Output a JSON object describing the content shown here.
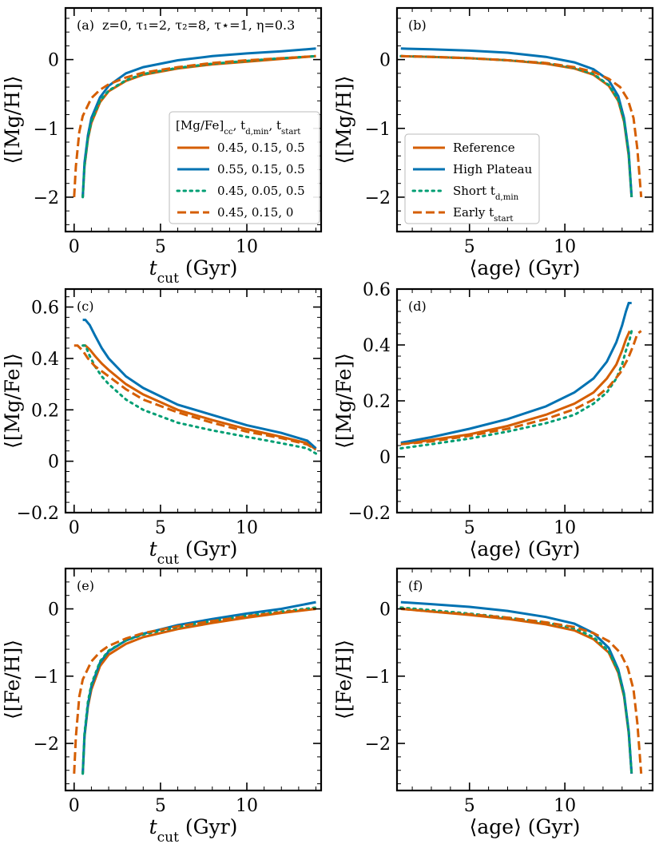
{
  "figure": {
    "annotation": "z=0, τ₁=2, τ₂=8, τ⋆=1, η=0.3",
    "legend_a": {
      "title": "[Mg/Fe]cc, td,min, tstart",
      "entries": [
        "0.45, 0.15, 0.5",
        "0.55, 0.15, 0.5",
        "0.45, 0.05, 0.5",
        "0.45, 0.15, 0"
      ]
    },
    "legend_b": {
      "entries": [
        "Reference",
        "High Plateau",
        "Short td,min",
        "Early tstart"
      ]
    }
  },
  "chart_data": [
    {
      "panel": "(a)",
      "type": "line",
      "xlabel": "t_cut (Gyr)",
      "ylabel": "⟨[Mg/H]⟩",
      "xlim": [
        -0.5,
        14.3
      ],
      "ylim": [
        -2.5,
        0.75
      ],
      "xticks": [
        0,
        5,
        10
      ],
      "yticks": [
        -2,
        -1,
        0
      ],
      "legend_position": "center-right",
      "series": [
        {
          "name": "0.45, 0.15, 0.5",
          "color": "#d55e00",
          "style": "solid",
          "x": [
            0.5,
            0.6,
            0.8,
            1.0,
            1.5,
            2.0,
            3.0,
            4.0,
            6.0,
            8.0,
            10.0,
            12.0,
            14.0
          ],
          "y": [
            -2.0,
            -1.55,
            -1.15,
            -0.92,
            -0.62,
            -0.46,
            -0.31,
            -0.22,
            -0.13,
            -0.07,
            -0.03,
            0.01,
            0.05
          ]
        },
        {
          "name": "0.55, 0.15, 0.5",
          "color": "#0072b2",
          "style": "solid",
          "x": [
            0.5,
            0.6,
            0.8,
            1.0,
            1.5,
            2.0,
            3.0,
            4.0,
            6.0,
            8.0,
            10.0,
            12.0,
            14.0
          ],
          "y": [
            -2.0,
            -1.5,
            -1.1,
            -0.85,
            -0.55,
            -0.38,
            -0.2,
            -0.11,
            -0.01,
            0.05,
            0.09,
            0.12,
            0.16
          ]
        },
        {
          "name": "0.45, 0.05, 0.5",
          "color": "#009e73",
          "style": "dotted",
          "x": [
            0.5,
            0.6,
            0.8,
            1.0,
            1.5,
            2.0,
            3.0,
            4.0,
            6.0,
            8.0,
            10.0,
            12.0,
            14.0
          ],
          "y": [
            -2.0,
            -1.55,
            -1.14,
            -0.9,
            -0.6,
            -0.45,
            -0.3,
            -0.21,
            -0.12,
            -0.06,
            -0.02,
            0.02,
            0.05
          ]
        },
        {
          "name": "0.45, 0.15, 0",
          "color": "#d55e00",
          "style": "dashed",
          "x": [
            0.0,
            0.1,
            0.3,
            0.5,
            1.0,
            1.5,
            2.0,
            3.0,
            4.0,
            6.0,
            8.0,
            10.0,
            12.0,
            14.0
          ],
          "y": [
            -2.0,
            -1.55,
            -1.05,
            -0.82,
            -0.56,
            -0.44,
            -0.36,
            -0.26,
            -0.19,
            -0.11,
            -0.05,
            -0.01,
            0.02,
            0.05
          ]
        }
      ]
    },
    {
      "panel": "(b)",
      "type": "line",
      "xlabel": "⟨age⟩ (Gyr)",
      "ylabel": "⟨[Mg/H]⟩",
      "xlim": [
        1.2,
        14.6
      ],
      "ylim": [
        -2.5,
        0.75
      ],
      "xticks": [
        5,
        10
      ],
      "yticks": [
        -2,
        -1,
        0
      ],
      "legend_position": "lower-left",
      "series": [
        {
          "name": "Reference",
          "color": "#d55e00",
          "style": "solid",
          "x": [
            1.4,
            3.0,
            5.0,
            7.0,
            9.0,
            10.5,
            11.5,
            12.3,
            12.8,
            13.1,
            13.35,
            13.5
          ],
          "y": [
            0.05,
            0.04,
            0.02,
            -0.01,
            -0.06,
            -0.13,
            -0.22,
            -0.38,
            -0.6,
            -0.9,
            -1.4,
            -2.0
          ]
        },
        {
          "name": "High Plateau",
          "color": "#0072b2",
          "style": "solid",
          "x": [
            1.4,
            3.0,
            5.0,
            7.0,
            9.0,
            10.5,
            11.5,
            12.3,
            12.8,
            13.1,
            13.35,
            13.5
          ],
          "y": [
            0.16,
            0.15,
            0.13,
            0.1,
            0.04,
            -0.04,
            -0.14,
            -0.3,
            -0.53,
            -0.85,
            -1.35,
            -2.0
          ]
        },
        {
          "name": "Short td,min",
          "color": "#009e73",
          "style": "dotted",
          "x": [
            1.4,
            3.0,
            5.0,
            7.0,
            9.0,
            10.5,
            11.5,
            12.3,
            12.8,
            13.1,
            13.35,
            13.5
          ],
          "y": [
            0.05,
            0.04,
            0.02,
            -0.01,
            -0.05,
            -0.12,
            -0.21,
            -0.37,
            -0.59,
            -0.88,
            -1.38,
            -2.0
          ]
        },
        {
          "name": "Early tstart",
          "color": "#d55e00",
          "style": "dashed",
          "x": [
            1.4,
            3.0,
            5.0,
            7.0,
            9.0,
            10.5,
            11.5,
            12.3,
            12.9,
            13.3,
            13.6,
            13.8,
            14.0
          ],
          "y": [
            0.05,
            0.04,
            0.02,
            -0.01,
            -0.05,
            -0.11,
            -0.18,
            -0.28,
            -0.4,
            -0.58,
            -0.85,
            -1.3,
            -2.0
          ]
        }
      ]
    },
    {
      "panel": "(c)",
      "type": "line",
      "xlabel": "t_cut (Gyr)",
      "ylabel": "⟨[Mg/Fe]⟩",
      "xlim": [
        -0.5,
        14.3
      ],
      "ylim": [
        -0.2,
        0.67
      ],
      "xticks": [
        0,
        5,
        10
      ],
      "yticks": [
        -0.2,
        0.0,
        0.2,
        0.4,
        0.6
      ],
      "series": [
        {
          "name": "0.45, 0.15, 0.5",
          "color": "#d55e00",
          "style": "solid",
          "x": [
            0.5,
            0.65,
            0.9,
            1.2,
            1.6,
            2.0,
            3.0,
            4.0,
            6.0,
            8.0,
            10.0,
            12.0,
            13.5,
            14.0
          ],
          "y": [
            0.45,
            0.45,
            0.435,
            0.41,
            0.38,
            0.355,
            0.3,
            0.26,
            0.2,
            0.16,
            0.125,
            0.095,
            0.07,
            0.045
          ]
        },
        {
          "name": "0.55, 0.15, 0.5",
          "color": "#0072b2",
          "style": "solid",
          "x": [
            0.5,
            0.65,
            0.9,
            1.2,
            1.6,
            2.0,
            3.0,
            4.0,
            6.0,
            8.0,
            10.0,
            12.0,
            13.5,
            14.0
          ],
          "y": [
            0.55,
            0.55,
            0.53,
            0.49,
            0.44,
            0.4,
            0.33,
            0.285,
            0.22,
            0.18,
            0.14,
            0.11,
            0.08,
            0.05
          ]
        },
        {
          "name": "0.45, 0.05, 0.5",
          "color": "#009e73",
          "style": "dotted",
          "x": [
            0.5,
            0.65,
            0.9,
            1.2,
            1.6,
            2.0,
            3.0,
            4.0,
            6.0,
            8.0,
            10.0,
            12.0,
            13.5,
            14.0
          ],
          "y": [
            0.45,
            0.45,
            0.41,
            0.37,
            0.33,
            0.3,
            0.24,
            0.2,
            0.15,
            0.12,
            0.095,
            0.07,
            0.05,
            0.03
          ]
        },
        {
          "name": "0.45, 0.15, 0",
          "color": "#d55e00",
          "style": "dashed",
          "x": [
            0.0,
            0.2,
            0.5,
            0.8,
            1.2,
            2.0,
            3.0,
            4.0,
            6.0,
            8.0,
            10.0,
            12.0,
            13.5,
            14.0
          ],
          "y": [
            0.45,
            0.45,
            0.43,
            0.4,
            0.37,
            0.33,
            0.28,
            0.24,
            0.19,
            0.15,
            0.115,
            0.09,
            0.065,
            0.045
          ]
        }
      ]
    },
    {
      "panel": "(d)",
      "type": "line",
      "xlabel": "⟨age⟩ (Gyr)",
      "ylabel": "⟨[Mg/Fe]⟩",
      "xlim": [
        1.2,
        14.6
      ],
      "ylim": [
        -0.2,
        0.6
      ],
      "xticks": [
        5,
        10
      ],
      "yticks": [
        -0.2,
        0.0,
        0.2,
        0.4,
        0.6
      ],
      "series": [
        {
          "name": "Reference",
          "color": "#d55e00",
          "style": "solid",
          "x": [
            1.4,
            3.0,
            5.0,
            7.0,
            9.0,
            10.5,
            11.5,
            12.2,
            12.7,
            13.0,
            13.2,
            13.4
          ],
          "y": [
            0.045,
            0.06,
            0.08,
            0.11,
            0.15,
            0.19,
            0.23,
            0.28,
            0.33,
            0.38,
            0.42,
            0.45
          ]
        },
        {
          "name": "High Plateau",
          "color": "#0072b2",
          "style": "solid",
          "x": [
            1.4,
            3.0,
            5.0,
            7.0,
            9.0,
            10.5,
            11.5,
            12.2,
            12.7,
            13.0,
            13.2,
            13.35,
            13.5
          ],
          "y": [
            0.05,
            0.07,
            0.1,
            0.135,
            0.18,
            0.23,
            0.28,
            0.34,
            0.41,
            0.47,
            0.52,
            0.55,
            0.55
          ]
        },
        {
          "name": "Short td,min",
          "color": "#009e73",
          "style": "dotted",
          "x": [
            1.4,
            3.0,
            5.0,
            7.0,
            9.0,
            10.5,
            11.5,
            12.2,
            12.7,
            13.0,
            13.2,
            13.4,
            13.5
          ],
          "y": [
            0.03,
            0.045,
            0.065,
            0.09,
            0.12,
            0.15,
            0.19,
            0.23,
            0.28,
            0.33,
            0.38,
            0.42,
            0.45
          ]
        },
        {
          "name": "Early tstart",
          "color": "#d55e00",
          "style": "dashed",
          "x": [
            1.4,
            3.0,
            5.0,
            7.0,
            9.0,
            10.5,
            11.5,
            12.3,
            12.9,
            13.3,
            13.6,
            13.8,
            14.0
          ],
          "y": [
            0.045,
            0.055,
            0.075,
            0.1,
            0.135,
            0.17,
            0.205,
            0.25,
            0.3,
            0.35,
            0.4,
            0.44,
            0.45
          ]
        }
      ]
    },
    {
      "panel": "(e)",
      "type": "line",
      "xlabel": "t_cut (Gyr)",
      "ylabel": "⟨[Fe/H]⟩",
      "xlim": [
        -0.5,
        14.3
      ],
      "ylim": [
        -2.7,
        0.6
      ],
      "xticks": [
        0,
        5,
        10
      ],
      "yticks": [
        -2,
        -1,
        0
      ],
      "series": [
        {
          "name": "0.45, 0.15, 0.5",
          "color": "#d55e00",
          "style": "solid",
          "x": [
            0.5,
            0.6,
            0.8,
            1.0,
            1.5,
            2.0,
            3.0,
            4.0,
            6.0,
            8.0,
            10.0,
            12.0,
            14.0
          ],
          "y": [
            -2.45,
            -1.9,
            -1.45,
            -1.2,
            -0.85,
            -0.68,
            -0.52,
            -0.42,
            -0.3,
            -0.21,
            -0.13,
            -0.06,
            0.0
          ]
        },
        {
          "name": "0.55, 0.15, 0.5",
          "color": "#0072b2",
          "style": "solid",
          "x": [
            0.5,
            0.6,
            0.8,
            1.0,
            1.5,
            2.0,
            3.0,
            4.0,
            6.0,
            8.0,
            10.0,
            12.0,
            14.0
          ],
          "y": [
            -2.45,
            -1.88,
            -1.42,
            -1.15,
            -0.8,
            -0.63,
            -0.47,
            -0.37,
            -0.24,
            -0.15,
            -0.07,
            0.0,
            0.1
          ]
        },
        {
          "name": "0.45, 0.05, 0.5",
          "color": "#009e73",
          "style": "dotted",
          "x": [
            0.5,
            0.6,
            0.8,
            1.0,
            1.5,
            2.0,
            3.0,
            4.0,
            6.0,
            8.0,
            10.0,
            12.0,
            14.0
          ],
          "y": [
            -2.45,
            -1.85,
            -1.38,
            -1.12,
            -0.78,
            -0.62,
            -0.47,
            -0.38,
            -0.27,
            -0.18,
            -0.1,
            -0.04,
            0.02
          ]
        },
        {
          "name": "0.45, 0.15, 0",
          "color": "#d55e00",
          "style": "dashed",
          "x": [
            0.0,
            0.1,
            0.3,
            0.5,
            1.0,
            1.5,
            2.0,
            3.0,
            4.0,
            6.0,
            8.0,
            10.0,
            12.0,
            14.0
          ],
          "y": [
            -2.45,
            -1.9,
            -1.3,
            -1.05,
            -0.78,
            -0.64,
            -0.55,
            -0.44,
            -0.36,
            -0.26,
            -0.18,
            -0.11,
            -0.05,
            0.0
          ]
        }
      ]
    },
    {
      "panel": "(f)",
      "type": "line",
      "xlabel": "⟨age⟩ (Gyr)",
      "ylabel": "⟨[Fe/H]⟩",
      "xlim": [
        1.2,
        14.6
      ],
      "ylim": [
        -2.7,
        0.6
      ],
      "xticks": [
        5,
        10
      ],
      "yticks": [
        -2,
        -1,
        0
      ],
      "series": [
        {
          "name": "Reference",
          "color": "#d55e00",
          "style": "solid",
          "x": [
            1.4,
            3.0,
            5.0,
            7.0,
            9.0,
            10.5,
            11.5,
            12.3,
            12.8,
            13.1,
            13.35,
            13.5
          ],
          "y": [
            0.0,
            -0.04,
            -0.09,
            -0.15,
            -0.23,
            -0.32,
            -0.45,
            -0.65,
            -0.95,
            -1.3,
            -1.85,
            -2.45
          ]
        },
        {
          "name": "High Plateau",
          "color": "#0072b2",
          "style": "solid",
          "x": [
            1.4,
            3.0,
            5.0,
            7.0,
            9.0,
            10.5,
            11.5,
            12.3,
            12.8,
            13.1,
            13.35,
            13.5
          ],
          "y": [
            0.1,
            0.07,
            0.03,
            -0.03,
            -0.12,
            -0.22,
            -0.36,
            -0.58,
            -0.9,
            -1.26,
            -1.82,
            -2.45
          ]
        },
        {
          "name": "Short td,min",
          "color": "#009e73",
          "style": "dotted",
          "x": [
            1.4,
            3.0,
            5.0,
            7.0,
            9.0,
            10.5,
            11.5,
            12.3,
            12.8,
            13.1,
            13.35,
            13.5
          ],
          "y": [
            0.02,
            -0.02,
            -0.07,
            -0.13,
            -0.2,
            -0.29,
            -0.42,
            -0.63,
            -0.93,
            -1.28,
            -1.83,
            -2.45
          ]
        },
        {
          "name": "Early tstart",
          "color": "#d55e00",
          "style": "dashed",
          "x": [
            1.4,
            3.0,
            5.0,
            7.0,
            9.0,
            10.5,
            11.5,
            12.3,
            12.9,
            13.3,
            13.6,
            13.8,
            14.0
          ],
          "y": [
            0.0,
            -0.04,
            -0.08,
            -0.13,
            -0.2,
            -0.27,
            -0.36,
            -0.48,
            -0.65,
            -0.88,
            -1.2,
            -1.7,
            -2.45
          ]
        }
      ]
    }
  ]
}
